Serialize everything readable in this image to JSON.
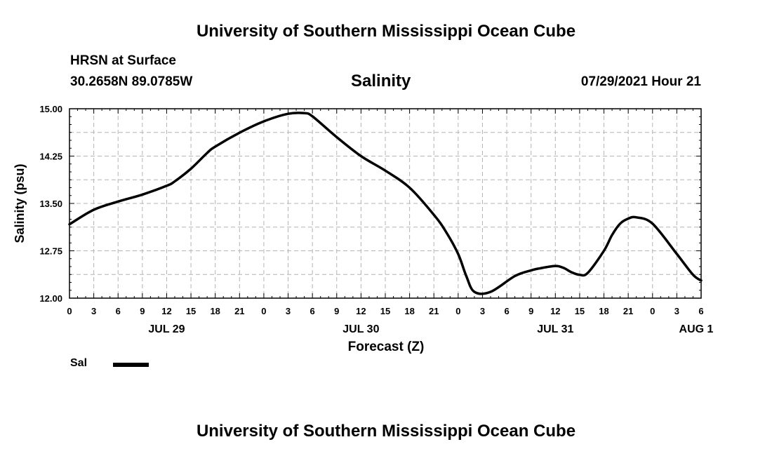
{
  "header": {
    "title_top": "University of Southern Mississippi Ocean Cube",
    "station": "HRSN at Surface",
    "location": "30.2658N  89.0785W",
    "chart_title": "Salinity",
    "datetime": "07/29/2021 Hour 21",
    "title_bottom": "University of Southern Mississippi Ocean Cube"
  },
  "chart_data": {
    "type": "line",
    "title": "Salinity",
    "xlabel": "Forecast (Z)",
    "ylabel": "Salinity (psu)",
    "ylim": [
      12.0,
      15.0
    ],
    "yticks": [
      "12.00",
      "12.75",
      "13.50",
      "14.25",
      "15.00"
    ],
    "xlim": [
      0,
      78
    ],
    "xtick_labels": [
      "0",
      "3",
      "6",
      "9",
      "12",
      "15",
      "18",
      "21",
      "0",
      "3",
      "6",
      "9",
      "12",
      "15",
      "18",
      "21",
      "0",
      "3",
      "6",
      "9",
      "12",
      "15",
      "18",
      "21",
      "0",
      "3",
      "6"
    ],
    "day_labels": [
      {
        "label": "JUL 29",
        "hour": 12
      },
      {
        "label": "JUL 30",
        "hour": 36
      },
      {
        "label": "JUL 31",
        "hour": 60
      },
      {
        "label": "AUG 1",
        "hour": 78
      }
    ],
    "grid": true,
    "series": [
      {
        "name": "Sal",
        "x": [
          0,
          3,
          6,
          9,
          12,
          13,
          15,
          17,
          18,
          21,
          24,
          27,
          29,
          30,
          33,
          36,
          39,
          42,
          45,
          46.5,
          48,
          49,
          50,
          52,
          55,
          57,
          58,
          60,
          61,
          62,
          63,
          64,
          66,
          67,
          68,
          69,
          70,
          72,
          75,
          77,
          78
        ],
        "y": [
          13.17,
          13.4,
          13.53,
          13.64,
          13.78,
          13.85,
          14.05,
          14.3,
          14.4,
          14.62,
          14.8,
          14.92,
          14.93,
          14.88,
          14.55,
          14.25,
          14.02,
          13.75,
          13.32,
          13.05,
          12.7,
          12.35,
          12.1,
          12.1,
          12.35,
          12.44,
          12.47,
          12.51,
          12.48,
          12.41,
          12.37,
          12.4,
          12.75,
          13.0,
          13.18,
          13.26,
          13.28,
          13.18,
          12.7,
          12.37,
          12.28
        ]
      }
    ],
    "legend": {
      "label": "Sal",
      "placement": "bottom-left"
    }
  }
}
